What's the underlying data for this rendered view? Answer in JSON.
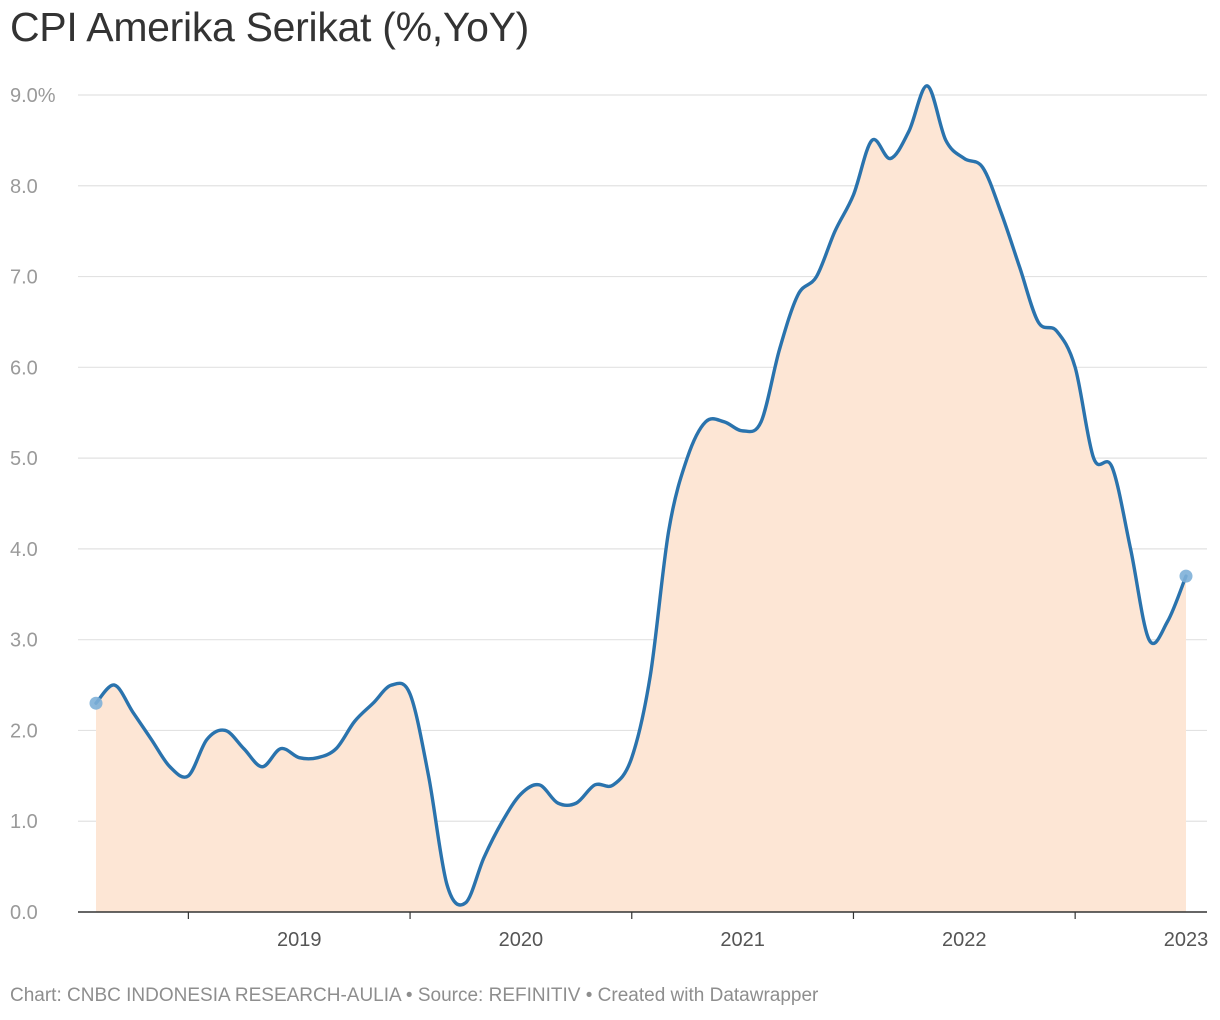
{
  "chart_data": {
    "type": "area",
    "title": "CPI Amerika Serikat (%,YoY)",
    "footer": "Chart: CNBC INDONESIA RESEARCH-AULIA • Source: REFINITIV • Created with Datawrapper",
    "xlabel": "",
    "ylabel": "",
    "ylim": [
      0,
      9
    ],
    "xlim": [
      "2018-08",
      "2023-07"
    ],
    "y_ticks": [
      0,
      1,
      2,
      3,
      4,
      5,
      6,
      7,
      8,
      9
    ],
    "y_tick_labels": [
      "0.0",
      "1.0",
      "2.0",
      "3.0",
      "4.0",
      "5.0",
      "6.0",
      "7.0",
      "8.0",
      "9.0%"
    ],
    "x_tick_labels": [
      "2019",
      "2020",
      "2021",
      "2022",
      "2023"
    ],
    "grid": "horizontal",
    "line_color": "#2a73ad",
    "fill_color": "#fde6d5",
    "marker_color": "#7eb0d8",
    "series": [
      {
        "x": [
          "2018-08",
          "2018-09",
          "2018-10",
          "2018-11",
          "2018-12",
          "2019-01",
          "2019-02",
          "2019-03",
          "2019-04",
          "2019-05",
          "2019-06",
          "2019-07",
          "2019-08",
          "2019-09",
          "2019-10",
          "2019-11",
          "2019-12",
          "2020-01",
          "2020-02",
          "2020-03",
          "2020-04",
          "2020-05",
          "2020-06",
          "2020-07",
          "2020-08",
          "2020-09",
          "2020-10",
          "2020-11",
          "2020-12",
          "2021-01",
          "2021-02",
          "2021-03",
          "2021-04",
          "2021-05",
          "2021-06",
          "2021-07",
          "2021-08",
          "2021-09",
          "2021-10",
          "2021-11",
          "2021-12",
          "2022-01",
          "2022-02",
          "2022-03",
          "2022-04",
          "2022-05",
          "2022-06",
          "2022-07",
          "2022-08",
          "2022-09",
          "2022-10",
          "2022-11",
          "2022-12",
          "2023-01",
          "2023-02",
          "2023-03",
          "2023-04",
          "2023-05",
          "2023-06",
          "2023-07"
        ],
        "values": [
          2.3,
          2.5,
          2.2,
          1.9,
          1.6,
          1.5,
          1.9,
          2.0,
          1.8,
          1.6,
          1.8,
          1.7,
          1.7,
          1.8,
          2.1,
          2.3,
          2.5,
          2.4,
          1.5,
          0.3,
          0.1,
          0.6,
          1.0,
          1.3,
          1.4,
          1.2,
          1.2,
          1.4,
          1.4,
          1.7,
          2.6,
          4.2,
          5.0,
          5.4,
          5.4,
          5.3,
          5.4,
          6.2,
          6.8,
          7.0,
          7.5,
          7.9,
          8.5,
          8.3,
          8.6,
          9.1,
          8.5,
          8.3,
          8.2,
          7.7,
          7.1,
          6.5,
          6.4,
          6.0,
          5.0,
          4.9,
          4.0,
          3.0,
          3.2,
          3.7
        ]
      }
    ]
  }
}
